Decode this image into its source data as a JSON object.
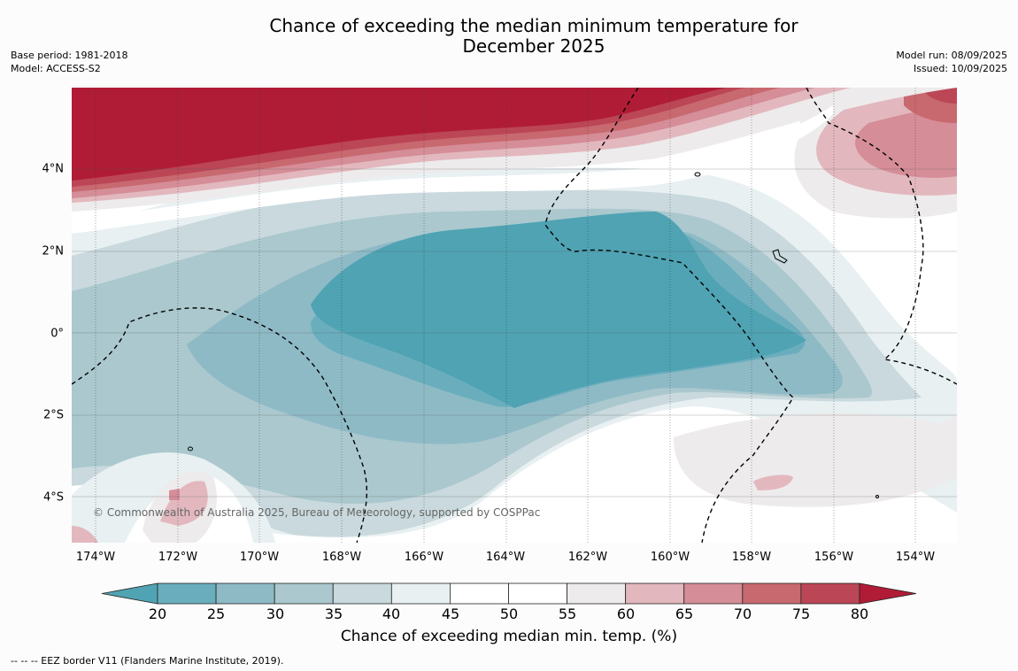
{
  "title_line1": "Chance of exceeding the median minimum temperature for",
  "title_line2": "December 2025",
  "meta_left": {
    "base_period": "Base period: 1981-2018",
    "model": "Model: ACCESS-S2"
  },
  "meta_right": {
    "model_run": "Model run: 08/09/2025",
    "issued": "Issued: 10/09/2025"
  },
  "y_labels": [
    "4°N",
    "2°N",
    "0°",
    "2°S",
    "4°S"
  ],
  "x_labels": [
    "174°W",
    "172°W",
    "170°W",
    "168°W",
    "166°W",
    "164°W",
    "162°W",
    "160°W",
    "158°W",
    "156°W",
    "154°W"
  ],
  "copyright": "© Commonwealth of Australia 2025, Bureau of Meteorology, supported by COSPPac",
  "colorbar": {
    "ticks": [
      "20",
      "25",
      "30",
      "35",
      "40",
      "45",
      "50",
      "55",
      "60",
      "65",
      "70",
      "75",
      "80"
    ],
    "colors": [
      "#4fa3b3",
      "#6aaebd",
      "#8ebac6",
      "#aac8ce",
      "#c9d9dd",
      "#e8f0f2",
      "#ffffff",
      "#ffffff",
      "#eeebec",
      "#e2b8be",
      "#d58d98",
      "#c8686f",
      "#bb4656",
      "#b01c36"
    ],
    "title": "Chance of exceeding median min. temp. (%)"
  },
  "footnote": "--  --  -- EEZ border V11 (Flanders Marine Institute, 2019)."
}
